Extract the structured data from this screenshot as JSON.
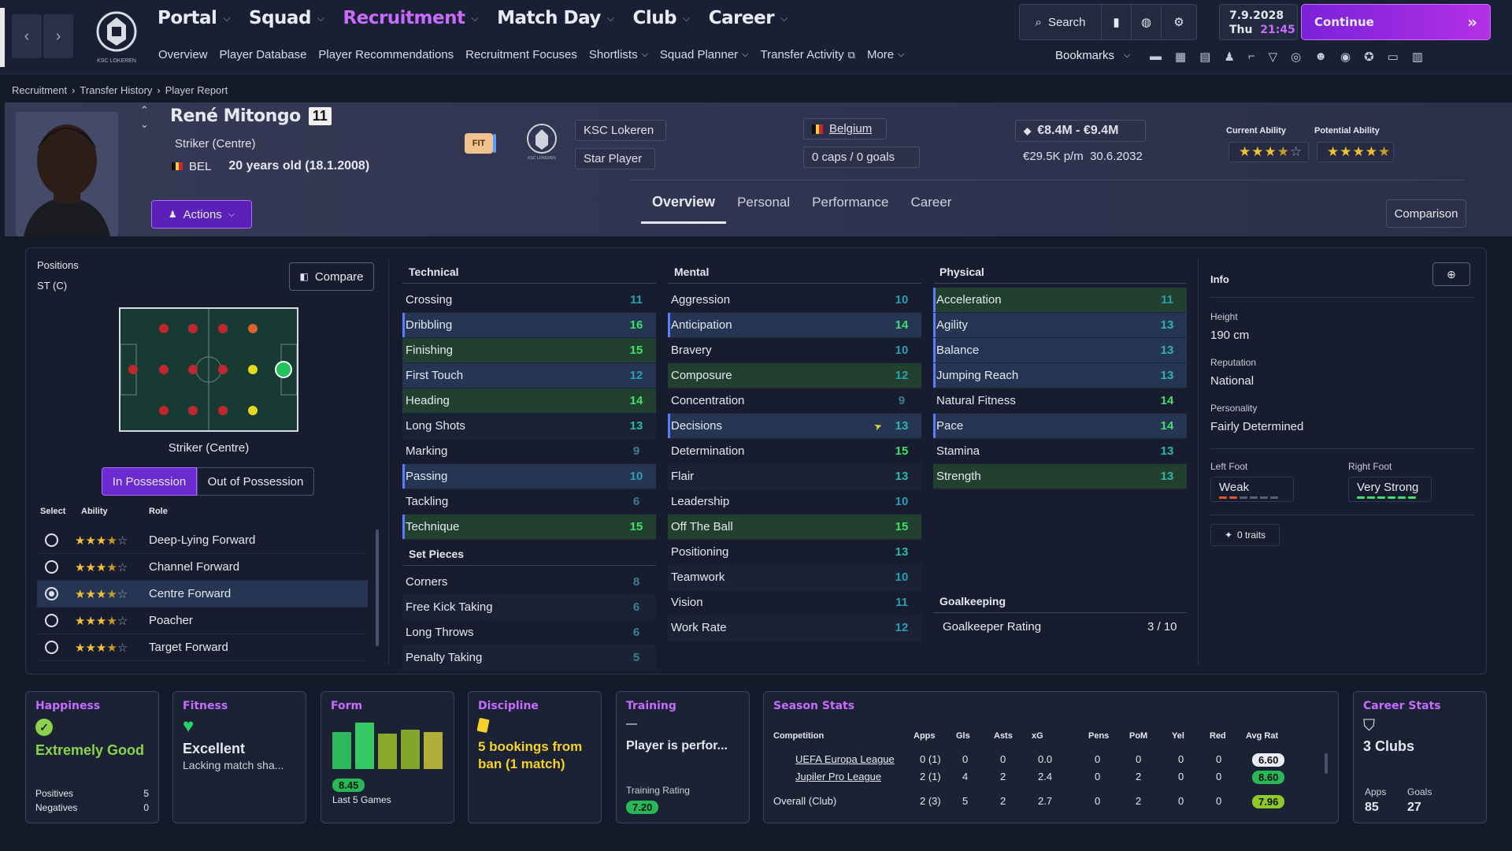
{
  "nav": {
    "main": [
      "Portal",
      "Squad",
      "Recruitment",
      "Match Day",
      "Club",
      "Career"
    ],
    "sub": [
      "Overview",
      "Player Database",
      "Player Recommendations",
      "Recruitment Focuses",
      "Shortlists",
      "Squad Planner",
      "Transfer Activity",
      "More"
    ],
    "search_label": "Search",
    "date": "7.9.2028",
    "day": "Thu",
    "time": "21:45",
    "continue_label": "Continue",
    "bookmarks_label": "Bookmarks",
    "club_badge_text": "KSC LOKEREN"
  },
  "breadcrumb": [
    "Recruitment",
    "Transfer History",
    "Player Report"
  ],
  "player": {
    "name": "René Mitongo",
    "number": "11",
    "position": "Striker (Centre)",
    "nationality_code": "BEL",
    "age": "20 years old (18.1.2008)",
    "fit_label": "FIT",
    "club": "KSC Lokeren",
    "status": "Star Player",
    "nation": "Belgium",
    "caps": "0 caps / 0 goals",
    "value": "€8.4M - €9.4M",
    "wage": "€29.5K p/m",
    "contract_end": "30.6.2032",
    "ca_label": "Current Ability",
    "pa_label": "Potential Ability",
    "ca_stars": 3.5,
    "pa_stars": 4.5,
    "actions_label": "Actions",
    "comparison_label": "Comparison",
    "tabs": [
      "Overview",
      "Personal",
      "Performance",
      "Career"
    ],
    "badge_text": "KSC LOKEREN"
  },
  "positions": {
    "label": "Positions",
    "value": "ST (C)",
    "compare_label": "Compare",
    "pitch_caption": "Striker (Centre)",
    "in_possession": "In Possession",
    "out_possession": "Out of Possession",
    "col_select": "Select",
    "col_ability": "Ability",
    "col_role": "Role",
    "roles": [
      {
        "name": "Deep-Lying Forward",
        "stars": 3.5,
        "selected": false
      },
      {
        "name": "Channel Forward",
        "stars": 3.5,
        "selected": false
      },
      {
        "name": "Centre Forward",
        "stars": 3.5,
        "selected": true
      },
      {
        "name": "Poacher",
        "stars": 3.5,
        "selected": false
      },
      {
        "name": "Target Forward",
        "stars": 3.5,
        "selected": false
      }
    ]
  },
  "attributes": {
    "technical_title": "Technical",
    "technical": [
      {
        "name": "Crossing",
        "value": 11
      },
      {
        "name": "Dribbling",
        "value": 16
      },
      {
        "name": "Finishing",
        "value": 15
      },
      {
        "name": "First Touch",
        "value": 12
      },
      {
        "name": "Heading",
        "value": 14
      },
      {
        "name": "Long Shots",
        "value": 13
      },
      {
        "name": "Marking",
        "value": 9
      },
      {
        "name": "Passing",
        "value": 10
      },
      {
        "name": "Tackling",
        "value": 6
      },
      {
        "name": "Technique",
        "value": 15
      }
    ],
    "setpieces_title": "Set Pieces",
    "setpieces": [
      {
        "name": "Corners",
        "value": 8
      },
      {
        "name": "Free Kick Taking",
        "value": 6
      },
      {
        "name": "Long Throws",
        "value": 6
      },
      {
        "name": "Penalty Taking",
        "value": 5
      }
    ],
    "mental_title": "Mental",
    "mental": [
      {
        "name": "Aggression",
        "value": 10
      },
      {
        "name": "Anticipation",
        "value": 14
      },
      {
        "name": "Bravery",
        "value": 10
      },
      {
        "name": "Composure",
        "value": 12
      },
      {
        "name": "Concentration",
        "value": 9
      },
      {
        "name": "Decisions",
        "value": 13
      },
      {
        "name": "Determination",
        "value": 15
      },
      {
        "name": "Flair",
        "value": 13
      },
      {
        "name": "Leadership",
        "value": 10
      },
      {
        "name": "Off The Ball",
        "value": 15
      },
      {
        "name": "Positioning",
        "value": 13
      },
      {
        "name": "Teamwork",
        "value": 10
      },
      {
        "name": "Vision",
        "value": 11
      },
      {
        "name": "Work Rate",
        "value": 12
      }
    ],
    "physical_title": "Physical",
    "physical": [
      {
        "name": "Acceleration",
        "value": 11
      },
      {
        "name": "Agility",
        "value": 13
      },
      {
        "name": "Balance",
        "value": 13
      },
      {
        "name": "Jumping Reach",
        "value": 13
      },
      {
        "name": "Natural Fitness",
        "value": 14
      },
      {
        "name": "Pace",
        "value": 14
      },
      {
        "name": "Stamina",
        "value": 13
      },
      {
        "name": "Strength",
        "value": 13
      }
    ],
    "goalkeeping_title": "Goalkeeping",
    "gk_label": "Goalkeeper Rating",
    "gk_value": "3 / 10"
  },
  "info": {
    "title": "Info",
    "height_label": "Height",
    "height": "190 cm",
    "reputation_label": "Reputation",
    "reputation": "National",
    "personality_label": "Personality",
    "personality": "Fairly Determined",
    "left_foot_label": "Left Foot",
    "left_foot": "Weak",
    "left_foot_level": 2,
    "right_foot_label": "Right Foot",
    "right_foot": "Very Strong",
    "right_foot_level": 6,
    "traits": "0 traits"
  },
  "cards": {
    "happiness": {
      "title": "Happiness",
      "value": "Extremely Good",
      "pos_label": "Positives",
      "pos": "5",
      "neg_label": "Negatives",
      "neg": "0"
    },
    "fitness": {
      "title": "Fitness",
      "value": "Excellent",
      "sub": "Lacking match sha..."
    },
    "form": {
      "title": "Form",
      "rating": "8.45",
      "sub": "Last 5 Games",
      "bars": [
        0.75,
        0.95,
        0.72,
        0.8,
        0.75
      ]
    },
    "discipline": {
      "title": "Discipline",
      "value": "5 bookings from ban (1 match)"
    },
    "training": {
      "title": "Training",
      "value": "Player is perfor...",
      "rating_label": "Training Rating",
      "rating": "7.20"
    },
    "season": {
      "title": "Season Stats",
      "cols": [
        "Competition",
        "Apps",
        "Gls",
        "Asts",
        "xG",
        "Pens",
        "PoM",
        "Yel",
        "Red",
        "Avg Rat"
      ],
      "rows": [
        [
          "UEFA Europa League",
          "0 (1)",
          "0",
          "0",
          "0.0",
          "0",
          "0",
          "0",
          "0",
          "6.60"
        ],
        [
          "Jupiler Pro League",
          "2 (1)",
          "4",
          "2",
          "2.4",
          "0",
          "2",
          "0",
          "0",
          "8.60"
        ],
        [
          "Overall (Club)",
          "2 (3)",
          "5",
          "2",
          "2.7",
          "0",
          "2",
          "0",
          "0",
          "7.96"
        ]
      ]
    },
    "career": {
      "title": "Career Stats",
      "value": "3 Clubs",
      "apps_label": "Apps",
      "apps": "85",
      "goals_label": "Goals",
      "goals": "27"
    }
  },
  "colors": {
    "accent": "#c86bff",
    "green": "#29d36a",
    "good": "#4ee07a",
    "mid": "#2fb6a8",
    "low": "#3b7f8e"
  }
}
